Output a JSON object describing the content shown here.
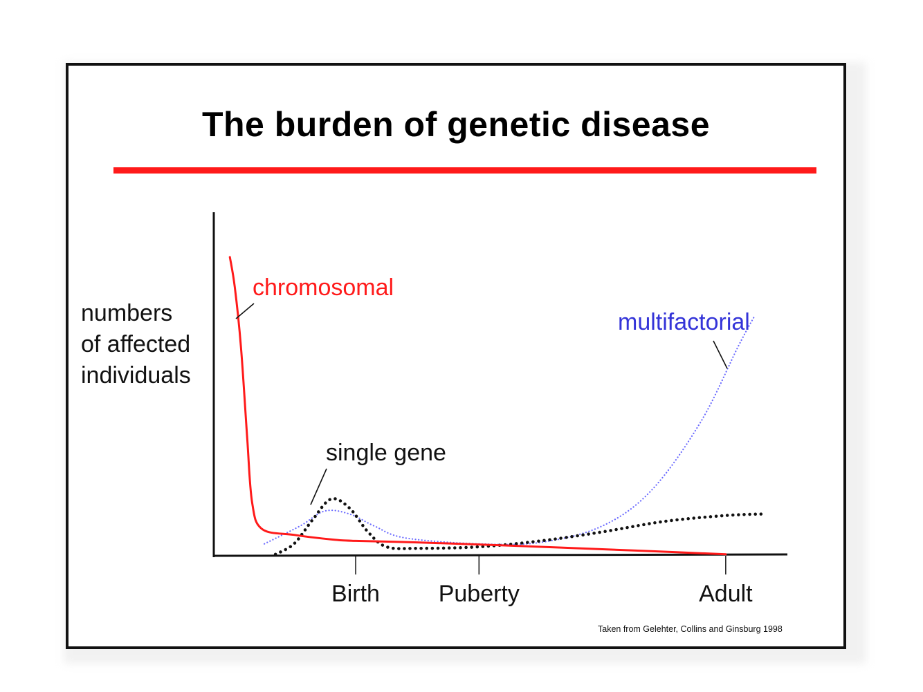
{
  "slide": {
    "title": "The burden of genetic disease",
    "source_note": "Taken from Gelehter, Collins and Ginsburg 1998",
    "colors": {
      "title_rule": "#ff1a1a",
      "frame": "#111111",
      "background": "#ffffff"
    }
  },
  "chart_data": {
    "type": "line",
    "title": "",
    "ylabel_lines": [
      "numbers",
      "of affected",
      "individuals"
    ],
    "xlabel": "",
    "x_ticks": [
      "Birth",
      "Puberty",
      "Adult"
    ],
    "y_ticks": [],
    "grid": false,
    "legend": "none",
    "note": "",
    "series": [
      {
        "name": "chromosomal",
        "color": "#ff1a1a",
        "style": "solid",
        "points": [
          [
            -1.02,
            100
          ],
          [
            -0.98,
            90
          ],
          [
            -0.93,
            70
          ],
          [
            -0.88,
            40
          ],
          [
            -0.84,
            18
          ],
          [
            -0.76,
            9
          ],
          [
            -0.5,
            7
          ],
          [
            -0.2,
            5.5
          ],
          [
            0.0,
            5
          ],
          [
            0.5,
            4.5
          ],
          [
            1.0,
            3.8
          ],
          [
            1.5,
            3
          ],
          [
            2.0,
            2.2
          ],
          [
            2.6,
            1.2
          ],
          [
            3.0,
            0.5
          ]
        ]
      },
      {
        "name": "single gene",
        "color": "#111111",
        "style": "dotted",
        "points": [
          [
            -0.65,
            0.5
          ],
          [
            -0.5,
            4
          ],
          [
            -0.35,
            12
          ],
          [
            -0.2,
            19
          ],
          [
            -0.05,
            16
          ],
          [
            0.1,
            8
          ],
          [
            0.25,
            3
          ],
          [
            0.5,
            2.5
          ],
          [
            1.0,
            3
          ],
          [
            1.5,
            5
          ],
          [
            2.0,
            8
          ],
          [
            2.5,
            11.5
          ],
          [
            3.0,
            13.5
          ],
          [
            3.3,
            14
          ]
        ]
      },
      {
        "name": "multifactorial",
        "color": "#6b6bff",
        "style": "dotted",
        "points": [
          [
            -0.74,
            4
          ],
          [
            -0.45,
            10
          ],
          [
            -0.25,
            15
          ],
          [
            -0.05,
            14
          ],
          [
            0.15,
            10
          ],
          [
            0.4,
            6
          ],
          [
            1.0,
            4
          ],
          [
            1.5,
            4.5
          ],
          [
            2.0,
            10
          ],
          [
            2.4,
            22
          ],
          [
            2.8,
            45
          ],
          [
            3.1,
            70
          ],
          [
            3.23,
            80
          ]
        ]
      }
    ],
    "annotations": [
      {
        "text": "chromosomal",
        "color": "#ff1a1a"
      },
      {
        "text": "single gene",
        "color": "#111111"
      },
      {
        "text": "multifactorial",
        "color": "#3434d8"
      }
    ],
    "x_range": [
      -1.15,
      3.5
    ],
    "y_range": [
      0,
      115
    ]
  }
}
